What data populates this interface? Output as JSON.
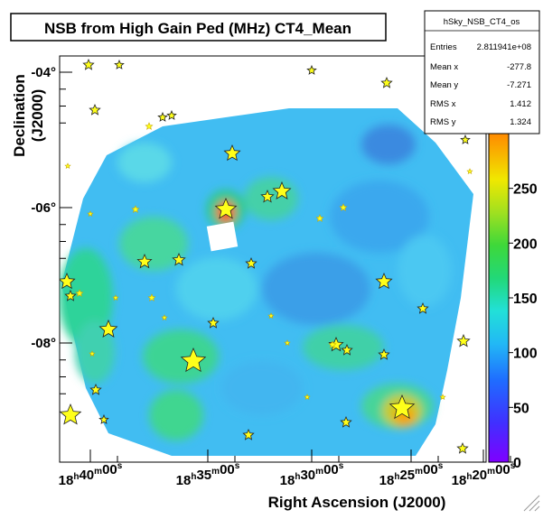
{
  "chart_data": {
    "type": "heatmap",
    "title": "NSB from High Gain Ped (MHz) CT4_Mean",
    "xlabel": "Right Ascension (J2000)",
    "ylabel": "Declination (J2000)",
    "x_tick_labels": [
      "18h40m00s",
      "18h35m00s",
      "18h30m00s",
      "18h25m00s",
      "18h20m00s"
    ],
    "y_tick_labels": [
      "-04°",
      "-06°",
      "-08°"
    ],
    "y_tick_values": [
      -4,
      -6,
      -8
    ],
    "colorbar": {
      "labels": [
        "0",
        "50",
        "100",
        "150",
        "200",
        "250"
      ],
      "range": [
        0,
        300
      ],
      "colors": [
        "#7f00ff",
        "#2f3fff",
        "#20d8f0",
        "#22d060",
        "#e8e800",
        "#ff8a00"
      ]
    },
    "stats_box": {
      "name": "hSky_NSB_CT4_os",
      "rows": [
        {
          "label": "Entries",
          "value": "2.811941e+08"
        },
        {
          "label": "Mean x",
          "value": "-277.8"
        },
        {
          "label": "Mean y",
          "value": "-7.271"
        },
        {
          "label": "RMS x",
          "value": "1.412"
        },
        {
          "label": "RMS y",
          "value": "1.324"
        }
      ]
    },
    "field_typical_value": 115,
    "hotspots": [
      {
        "ra_label": "near 18h35m",
        "dec": -6.0,
        "value": 250
      },
      {
        "ra_label": "near 18h22m",
        "dec": -9.1,
        "value": 255
      }
    ]
  },
  "colors": {
    "background": "#ffffff",
    "field_base": "#41bdf2",
    "star_fill": "#ffff1a",
    "star_stroke": "#c8a800"
  }
}
